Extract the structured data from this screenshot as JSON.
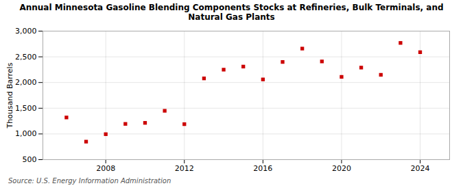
{
  "chart_data": {
    "type": "scatter",
    "title": "Annual Minnesota Gasoline Blending Components Stocks at Refineries, Bulk Terminals, and\nNatural Gas Plants",
    "ylabel": "Thousand Barrels",
    "source": "Source: U.S. Energy Information Administration",
    "x": [
      2006,
      2007,
      2008,
      2009,
      2010,
      2011,
      2012,
      2013,
      2014,
      2015,
      2016,
      2017,
      2018,
      2019,
      2020,
      2021,
      2022,
      2023,
      2024
    ],
    "values": [
      1320,
      850,
      995,
      1195,
      1215,
      1450,
      1190,
      2080,
      2250,
      2310,
      2060,
      2400,
      2660,
      2410,
      2110,
      2290,
      2150,
      2770,
      2590
    ],
    "color": "#cc0000",
    "marker": "square",
    "xlim": [
      2004.8,
      2025.5
    ],
    "xticks": [
      2008,
      2012,
      2016,
      2020,
      2024
    ],
    "ylim": [
      500,
      3000
    ],
    "yticks": [
      500,
      {
        "value": 1000,
        "label": "1,000"
      },
      {
        "value": 1500,
        "label": "1,500"
      },
      {
        "value": 2000,
        "label": "2,000"
      },
      {
        "value": 2500,
        "label": "2,500"
      },
      {
        "value": 3000,
        "label": "3,000"
      }
    ],
    "grid": true
  }
}
